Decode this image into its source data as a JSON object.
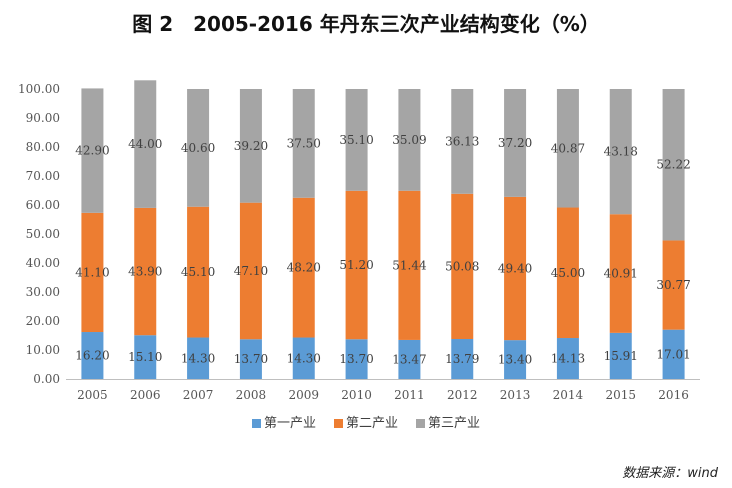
{
  "title": "图 2　2005-2016 年丹东三次产业结构变化（%）",
  "source": "数据来源：wind",
  "chart_data": {
    "type": "bar",
    "stacked": true,
    "categories": [
      "2005",
      "2006",
      "2007",
      "2008",
      "2009",
      "2010",
      "2011",
      "2012",
      "2013",
      "2014",
      "2015",
      "2016"
    ],
    "series": [
      {
        "name": "第一产业",
        "color": "#5b9bd5",
        "values": [
          16.2,
          15.1,
          14.3,
          13.7,
          14.3,
          13.7,
          13.47,
          13.79,
          13.4,
          14.13,
          15.91,
          17.01
        ],
        "labels": [
          "16.20",
          "15.10",
          "14.30",
          "13.70",
          "14.30",
          "13.70",
          "13.47",
          "13.79",
          "13.40",
          "14.13",
          "15.91",
          "17.01"
        ]
      },
      {
        "name": "第二产业",
        "color": "#ed7d31",
        "values": [
          41.1,
          43.9,
          45.1,
          47.1,
          48.2,
          51.2,
          51.44,
          50.08,
          49.4,
          45.0,
          40.91,
          30.77
        ],
        "labels": [
          "41.10",
          "43.90",
          "45.10",
          "47.10",
          "48.20",
          "51.20",
          "51.44",
          "50.08",
          "49.40",
          "45.00",
          "40.91",
          "30.77"
        ]
      },
      {
        "name": "第三产业",
        "color": "#a5a5a5",
        "values": [
          42.9,
          44.0,
          40.6,
          39.2,
          37.5,
          35.1,
          35.09,
          36.13,
          37.2,
          40.87,
          43.18,
          52.22
        ],
        "labels": [
          "42.90",
          "44.00",
          "40.60",
          "39.20",
          "37.50",
          "35.10",
          "35.09",
          "36.13",
          "37.20",
          "40.87",
          "43.18",
          "52.22"
        ]
      }
    ],
    "ylim": [
      0,
      100
    ],
    "yticks": [
      "0.00",
      "10.00",
      "20.00",
      "30.00",
      "40.00",
      "50.00",
      "60.00",
      "70.00",
      "80.00",
      "90.00",
      "100.00"
    ],
    "legend_position": "bottom",
    "grid": false
  }
}
